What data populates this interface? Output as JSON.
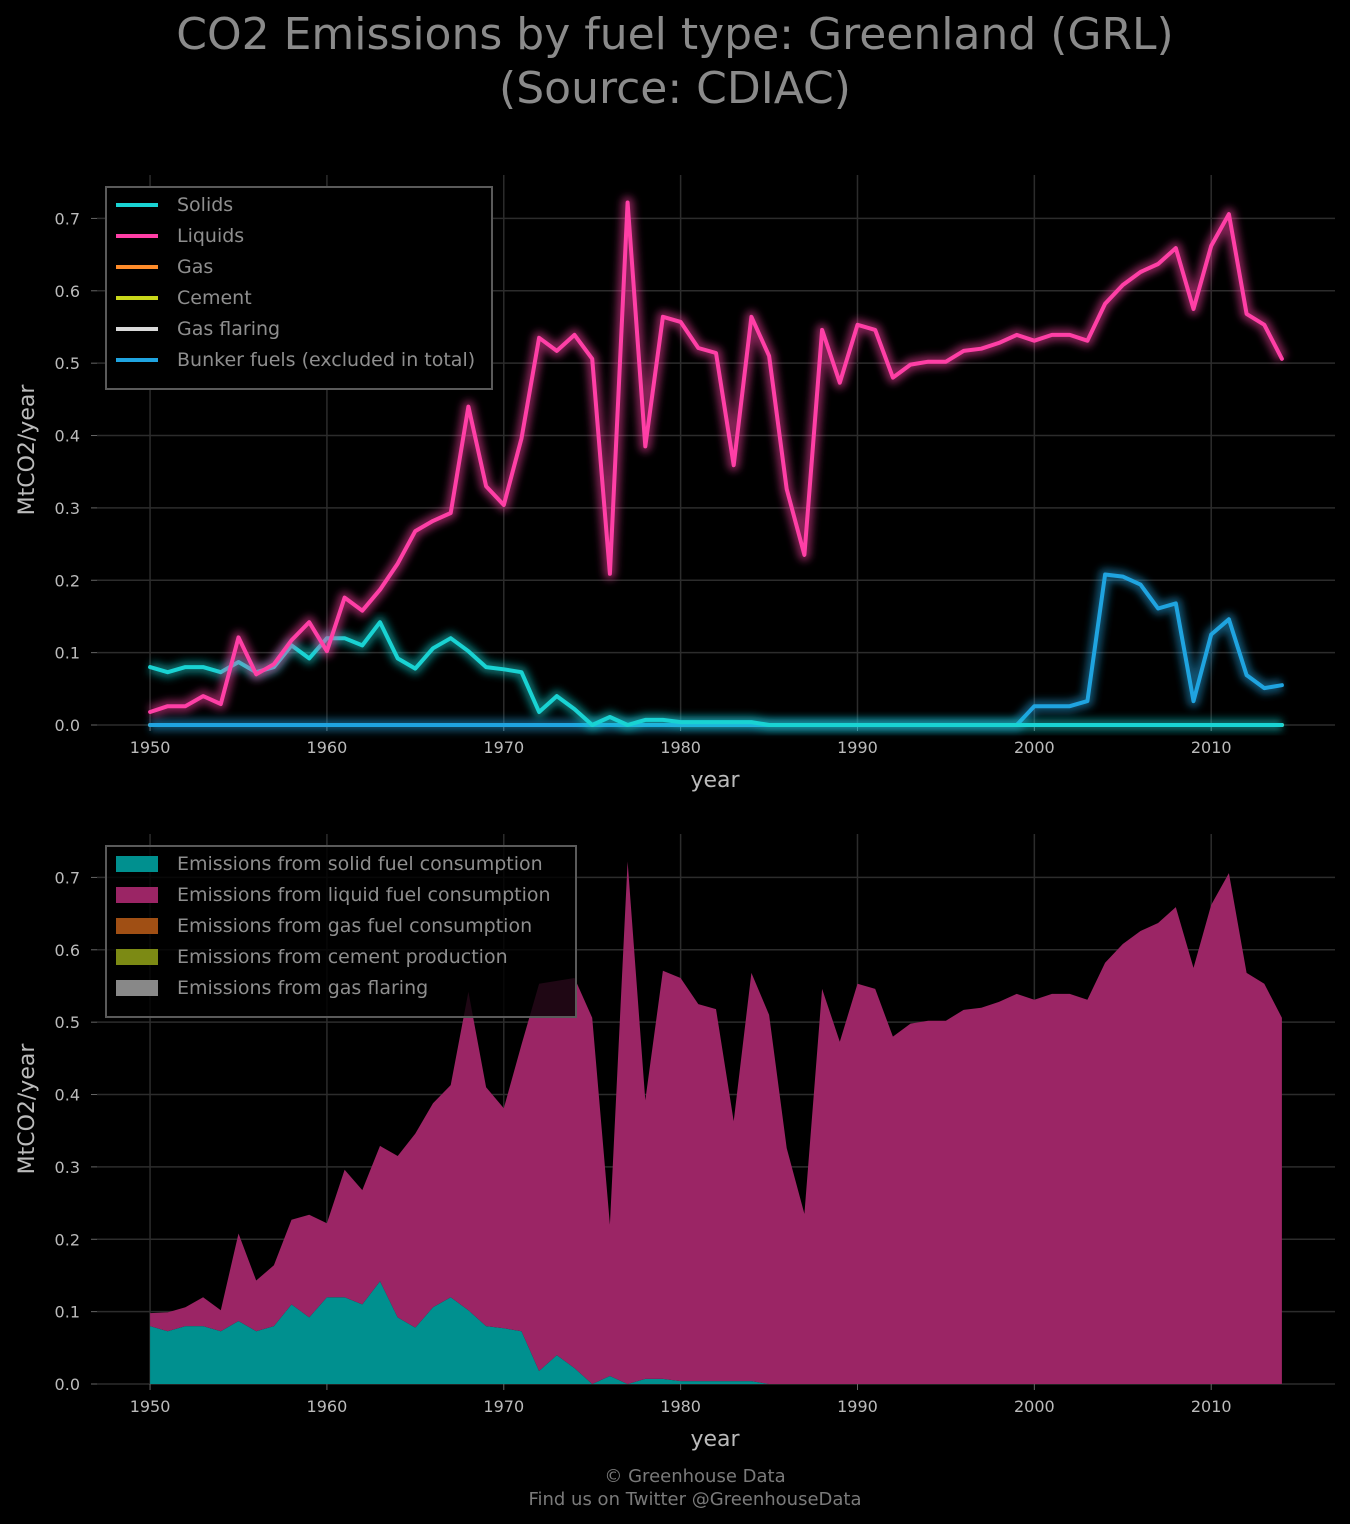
{
  "title_line1": "CO2 Emissions by fuel type: Greenland (GRL)",
  "title_line2": "(Source: CDIAC)",
  "footer_line1": "© Greenhouse Data",
  "footer_line2": "Find us on Twitter @GreenhouseData",
  "colors": {
    "solids": "#19d3d3",
    "liquids": "#ff3fa6",
    "gas": "#ff8c2a",
    "cement": "#c9d71a",
    "flaring": "#d9d9d9",
    "bunker": "#1fa4e0",
    "solids_fill": "#00908f",
    "liquids_fill": "#9b2565",
    "gas_fill": "#a04f14",
    "cement_fill": "#7c8a14",
    "flaring_fill": "#888888"
  },
  "chart_data": [
    {
      "type": "line",
      "xlabel": "year",
      "ylabel": "MtCO2/year",
      "xlim": [
        1947,
        2017
      ],
      "ylim": [
        0,
        0.76
      ],
      "xticks": [
        1950,
        1960,
        1970,
        1980,
        1990,
        2000,
        2010
      ],
      "yticks": [
        0.0,
        0.1,
        0.2,
        0.3,
        0.4,
        0.5,
        0.6,
        0.7
      ],
      "grid": true,
      "legend_position": "top-left",
      "x": [
        1950,
        1951,
        1952,
        1953,
        1954,
        1955,
        1956,
        1957,
        1958,
        1959,
        1960,
        1961,
        1962,
        1963,
        1964,
        1965,
        1966,
        1967,
        1968,
        1969,
        1970,
        1971,
        1972,
        1973,
        1974,
        1975,
        1976,
        1977,
        1978,
        1979,
        1980,
        1981,
        1982,
        1983,
        1984,
        1985,
        1986,
        1987,
        1988,
        1989,
        1990,
        1991,
        1992,
        1993,
        1994,
        1995,
        1996,
        1997,
        1998,
        1999,
        2000,
        2001,
        2002,
        2003,
        2004,
        2005,
        2006,
        2007,
        2008,
        2009,
        2010,
        2011,
        2012,
        2013,
        2014
      ],
      "series": [
        {
          "name": "Solids",
          "key": "solids",
          "values": [
            0.08,
            0.073,
            0.08,
            0.08,
            0.073,
            0.087,
            0.073,
            0.08,
            0.11,
            0.092,
            0.12,
            0.12,
            0.11,
            0.142,
            0.092,
            0.078,
            0.106,
            0.12,
            0.102,
            0.08,
            0.077,
            0.073,
            0.018,
            0.04,
            0.022,
            0.0,
            0.011,
            0.0,
            0.007,
            0.007,
            0.004,
            0.004,
            0.004,
            0.004,
            0.004,
            0.0,
            0.0,
            0.0,
            0.0,
            0.0,
            0.0,
            0.0,
            0.0,
            0.0,
            0.0,
            0.0,
            0.0,
            0.0,
            0.0,
            0.0,
            0.0,
            0.0,
            0.0,
            0.0,
            0.0,
            0.0,
            0.0,
            0.0,
            0.0,
            0.0,
            0.0,
            0.0,
            0.0,
            0.0,
            0.0
          ]
        },
        {
          "name": "Liquids",
          "key": "liquids",
          "values": [
            0.018,
            0.026,
            0.026,
            0.04,
            0.029,
            0.121,
            0.07,
            0.084,
            0.117,
            0.142,
            0.102,
            0.176,
            0.158,
            0.187,
            0.223,
            0.268,
            0.282,
            0.293,
            0.44,
            0.33,
            0.304,
            0.396,
            0.535,
            0.517,
            0.539,
            0.506,
            0.209,
            0.722,
            0.385,
            0.564,
            0.557,
            0.521,
            0.514,
            0.359,
            0.564,
            0.51,
            0.326,
            0.235,
            0.546,
            0.473,
            0.553,
            0.546,
            0.48,
            0.498,
            0.502,
            0.502,
            0.517,
            0.52,
            0.528,
            0.539,
            0.531,
            0.539,
            0.539,
            0.531,
            0.582,
            0.608,
            0.626,
            0.637,
            0.659,
            0.575,
            0.662,
            0.706,
            0.568,
            0.553,
            0.506
          ]
        },
        {
          "name": "Gas",
          "key": "gas",
          "values": [
            0,
            0,
            0,
            0,
            0,
            0,
            0,
            0,
            0,
            0,
            0,
            0,
            0,
            0,
            0,
            0,
            0,
            0,
            0,
            0,
            0,
            0,
            0,
            0,
            0,
            0,
            0,
            0,
            0,
            0,
            0,
            0,
            0,
            0,
            0,
            0,
            0,
            0,
            0,
            0,
            0,
            0,
            0,
            0,
            0,
            0,
            0,
            0,
            0,
            0,
            0,
            0,
            0,
            0,
            0,
            0,
            0,
            0,
            0,
            0,
            0,
            0,
            0,
            0,
            0
          ]
        },
        {
          "name": "Cement",
          "key": "cement",
          "values": [
            0,
            0,
            0,
            0,
            0,
            0,
            0,
            0,
            0,
            0,
            0,
            0,
            0,
            0,
            0,
            0,
            0,
            0,
            0,
            0,
            0,
            0,
            0,
            0,
            0,
            0,
            0,
            0,
            0,
            0,
            0,
            0,
            0,
            0,
            0,
            0,
            0,
            0,
            0,
            0,
            0,
            0,
            0,
            0,
            0,
            0,
            0,
            0,
            0,
            0,
            0,
            0,
            0,
            0,
            0,
            0,
            0,
            0,
            0,
            0,
            0,
            0,
            0,
            0,
            0
          ]
        },
        {
          "name": "Gas flaring",
          "key": "flaring",
          "values": [
            0,
            0,
            0,
            0,
            0,
            0,
            0,
            0,
            0,
            0,
            0,
            0,
            0,
            0,
            0,
            0,
            0,
            0,
            0,
            0,
            0,
            0,
            0,
            0,
            0,
            0,
            0,
            0,
            0,
            0,
            0,
            0,
            0,
            0,
            0,
            0,
            0,
            0,
            0,
            0,
            0,
            0,
            0,
            0,
            0,
            0,
            0,
            0,
            0,
            0,
            0,
            0,
            0,
            0,
            0,
            0,
            0,
            0,
            0,
            0,
            0,
            0,
            0,
            0,
            0
          ]
        },
        {
          "name": "Bunker fuels (excluded in total)",
          "key": "bunker",
          "values": [
            0,
            0,
            0,
            0,
            0,
            0,
            0,
            0,
            0,
            0,
            0,
            0,
            0,
            0,
            0,
            0,
            0,
            0,
            0,
            0,
            0,
            0,
            0,
            0,
            0,
            0,
            0,
            0,
            0,
            0,
            0,
            0,
            0,
            0,
            0,
            0,
            0,
            0,
            0,
            0,
            0,
            0,
            0,
            0,
            0,
            0,
            0,
            0,
            0,
            0,
            0.026,
            0.026,
            0.026,
            0.033,
            0.208,
            0.205,
            0.194,
            0.161,
            0.168,
            0.033,
            0.125,
            0.146,
            0.069,
            0.051,
            0.055
          ]
        }
      ]
    },
    {
      "type": "area",
      "stacked": true,
      "xlabel": "year",
      "ylabel": "MtCO2/year",
      "xlim": [
        1947,
        2017
      ],
      "ylim": [
        0,
        0.76
      ],
      "xticks": [
        1950,
        1960,
        1970,
        1980,
        1990,
        2000,
        2010
      ],
      "yticks": [
        0.0,
        0.1,
        0.2,
        0.3,
        0.4,
        0.5,
        0.6,
        0.7
      ],
      "grid": true,
      "legend_position": "top-left",
      "series": [
        {
          "name": "Emissions from solid fuel consumption",
          "key": "solids_fill",
          "source": "Solids"
        },
        {
          "name": "Emissions from liquid fuel consumption",
          "key": "liquids_fill",
          "source": "Liquids"
        },
        {
          "name": "Emissions from gas fuel consumption",
          "key": "gas_fill",
          "source": "Gas"
        },
        {
          "name": "Emissions from cement production",
          "key": "cement_fill",
          "source": "Cement"
        },
        {
          "name": "Emissions from gas flaring",
          "key": "flaring_fill",
          "source": "Gas flaring"
        }
      ]
    }
  ]
}
